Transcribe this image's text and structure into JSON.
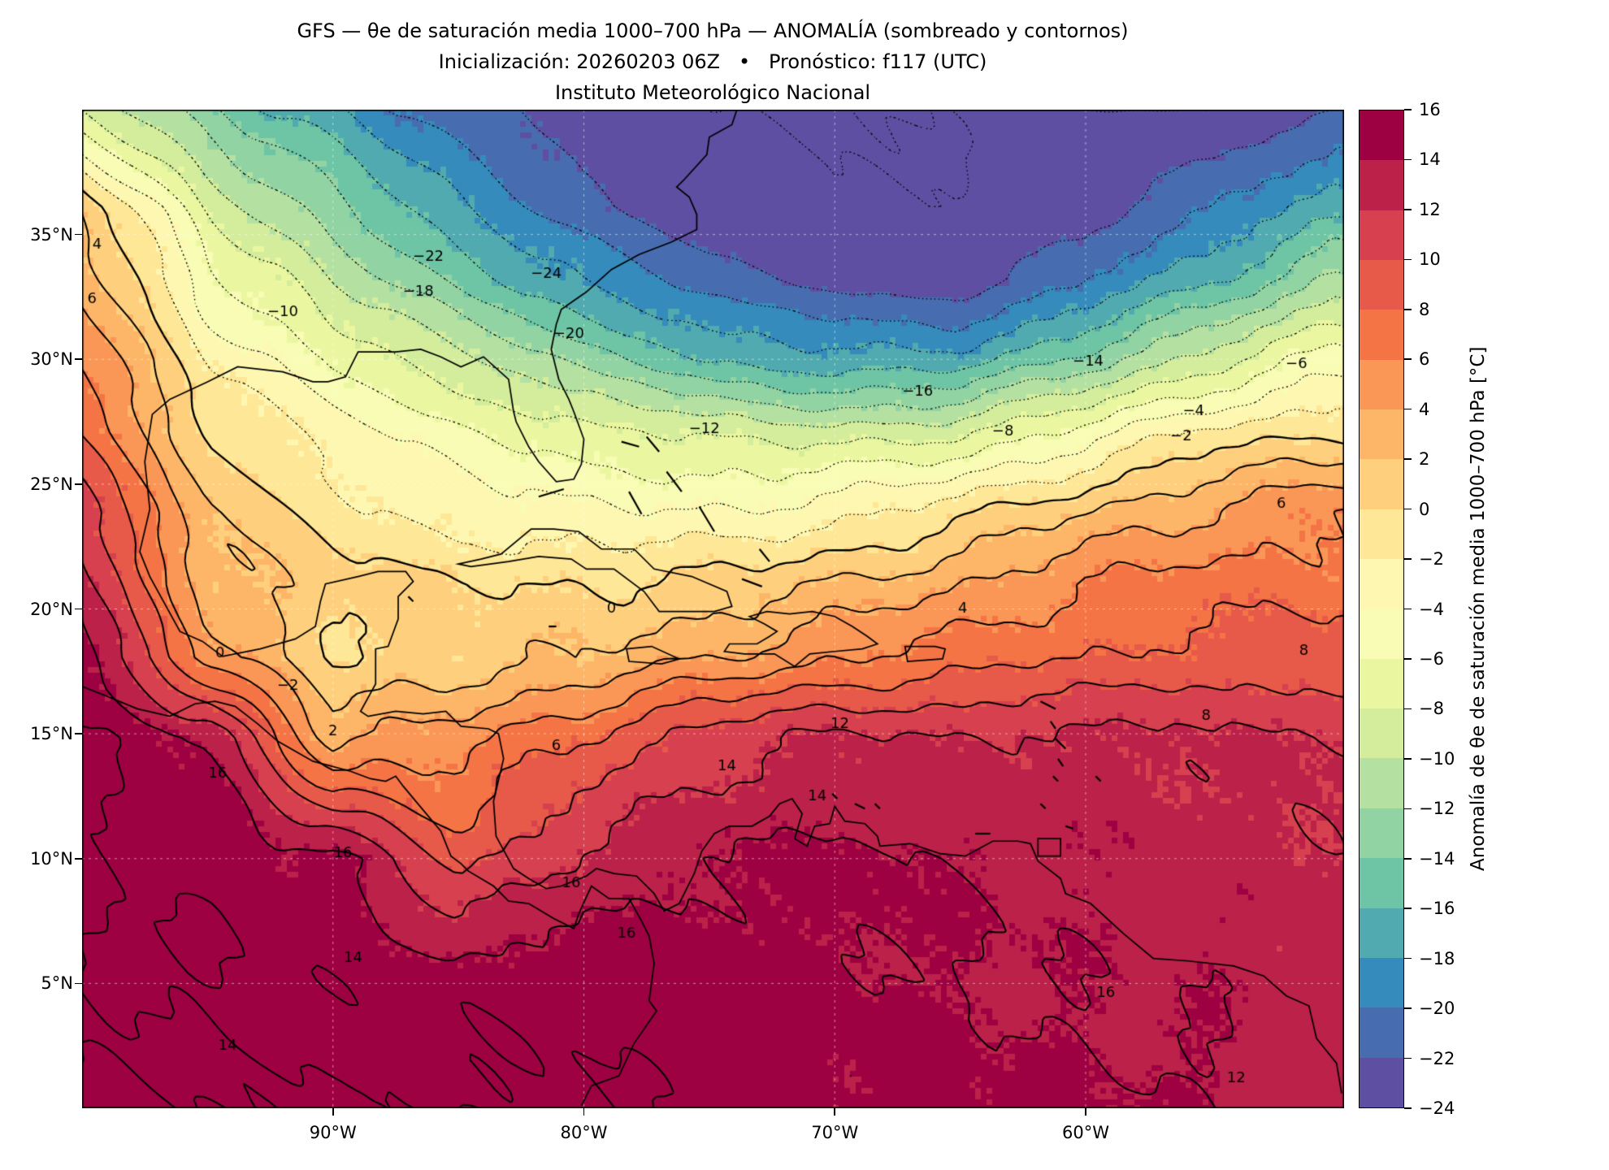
{
  "title": {
    "line1": "GFS — θe de saturación media 1000–700 hPa — ANOMALÍA (sombreado y contornos)",
    "line2": "Inicialización: 20260203 06Z   •   Pronóstico: f117 (UTC)",
    "line3": "Instituto Meteorológico Nacional"
  },
  "axes": {
    "lon_range": [
      -100,
      -49.7
    ],
    "lat_range": [
      0,
      40
    ],
    "x_ticks": [
      {
        "lon": -90,
        "label": "90°W"
      },
      {
        "lon": -80,
        "label": "80°W"
      },
      {
        "lon": -70,
        "label": "70°W"
      },
      {
        "lon": -60,
        "label": "60°W"
      }
    ],
    "y_ticks": [
      {
        "lat": 35,
        "label": "35°N"
      },
      {
        "lat": 30,
        "label": "30°N"
      },
      {
        "lat": 25,
        "label": "25°N"
      },
      {
        "lat": 20,
        "label": "20°N"
      },
      {
        "lat": 15,
        "label": "15°N"
      },
      {
        "lat": 10,
        "label": "10°N"
      },
      {
        "lat": 5,
        "label": "5°N"
      }
    ],
    "gridline_lons": [
      -90,
      -80,
      -70,
      -60
    ],
    "gridline_lats": [
      5,
      10,
      15,
      20,
      25,
      30,
      35
    ]
  },
  "colorbar": {
    "label": "Anomalía de θe de saturación media 1000–700 hPa [°C]",
    "vmin": -24,
    "vmax": 16,
    "tick_values": [
      16,
      14,
      12,
      10,
      8,
      6,
      4,
      2,
      0,
      -2,
      -4,
      -6,
      -8,
      -10,
      -12,
      -14,
      -16,
      -18,
      -20,
      -22,
      -24
    ],
    "tick_labels": [
      "16",
      "14",
      "12",
      "10",
      "8",
      "6",
      "4",
      "2",
      "0",
      "−2",
      "−4",
      "−6",
      "−8",
      "−10",
      "−12",
      "−14",
      "−16",
      "−18",
      "−20",
      "−22",
      "−24"
    ],
    "colors": [
      "#5e4fa2",
      "#476db0",
      "#358bbc",
      "#50aaaf",
      "#6dc5a5",
      "#92d3a4",
      "#b4e1a2",
      "#d3ed9c",
      "#ebf7a0",
      "#f8fcb5",
      "#fef7b1",
      "#fee796",
      "#fed07e",
      "#fdb668",
      "#fa9656",
      "#f57446",
      "#e75948",
      "#d7404e",
      "#bb2149",
      "#9e0142"
    ]
  },
  "chart_data": {
    "type": "heatmap",
    "title": "GFS — θe de saturación media 1000–700 hPa — ANOMALÍA (sombreado y contornos)",
    "units": "°C",
    "x": [
      -100,
      -95,
      -90,
      -85,
      -80,
      -75,
      -70,
      -65,
      -60,
      -55,
      -50
    ],
    "y": [
      0,
      5,
      10,
      15,
      18,
      21,
      24,
      27,
      30,
      33,
      36,
      40
    ],
    "values": [
      [
        16,
        16,
        16,
        16,
        16,
        15.5,
        15,
        15,
        14.5,
        14,
        12.5
      ],
      [
        16,
        16,
        15.5,
        15.5,
        15.5,
        15,
        14.5,
        14,
        13.5,
        13.5,
        13
      ],
      [
        16,
        15.5,
        14.5,
        9,
        12.5,
        14,
        14.5,
        14,
        13.5,
        13,
        12.5
      ],
      [
        16,
        14,
        3,
        5,
        8,
        11,
        12,
        12,
        12.5,
        12,
        12
      ],
      [
        15,
        5,
        0,
        1,
        2,
        4,
        6,
        7,
        8,
        9,
        9
      ],
      [
        13,
        3,
        1,
        0,
        0,
        0.5,
        2,
        4,
        6,
        7,
        7
      ],
      [
        11,
        2,
        -1,
        -3,
        -4,
        -4,
        -3,
        -1,
        2,
        4,
        6
      ],
      [
        8,
        0,
        -3,
        -5.5,
        -7,
        -8.5,
        -9,
        -8,
        -5,
        -1,
        0
      ],
      [
        6,
        -2,
        -6,
        -9.5,
        -13,
        -16,
        -17.5,
        -17.5,
        -13,
        -9,
        -5
      ],
      [
        4,
        -5,
        -10,
        -14,
        -18,
        -21,
        -22.5,
        -23,
        -20,
        -16,
        -11
      ],
      [
        2,
        -8,
        -13,
        -18,
        -21.5,
        -23.5,
        -24,
        -24,
        -23,
        -20,
        -17
      ],
      [
        -8,
        -14,
        -18,
        -21,
        -23,
        -24,
        -24,
        -24,
        -24,
        -24,
        -22
      ]
    ],
    "contour_levels": [
      -24,
      -22,
      -20,
      -18,
      -16,
      -14,
      -12,
      -10,
      -8,
      -6,
      -4,
      -2,
      0,
      2,
      4,
      6,
      8,
      10,
      12,
      14,
      16
    ]
  },
  "contour_labels": [
    {
      "text": "4",
      "lon": -99.4,
      "lat": 34.6
    },
    {
      "text": "6",
      "lon": -99.6,
      "lat": 32.4
    },
    {
      "text": "−10",
      "lon": -92.0,
      "lat": 31.9
    },
    {
      "text": "−22",
      "lon": -86.2,
      "lat": 34.1
    },
    {
      "text": "−18",
      "lon": -86.6,
      "lat": 32.7
    },
    {
      "text": "−24",
      "lon": -81.5,
      "lat": 33.4
    },
    {
      "text": "−20",
      "lon": -80.6,
      "lat": 31.0
    },
    {
      "text": "−12",
      "lon": -75.2,
      "lat": 27.2
    },
    {
      "text": "−16",
      "lon": -66.7,
      "lat": 28.7
    },
    {
      "text": "−14",
      "lon": -59.9,
      "lat": 29.9
    },
    {
      "text": "−8",
      "lon": -63.3,
      "lat": 27.1
    },
    {
      "text": "−6",
      "lon": -51.6,
      "lat": 29.8
    },
    {
      "text": "−4",
      "lon": -55.7,
      "lat": 27.9
    },
    {
      "text": "−2",
      "lon": -56.2,
      "lat": 26.9
    },
    {
      "text": "0",
      "lon": -78.9,
      "lat": 20.0
    },
    {
      "text": "0",
      "lon": -94.5,
      "lat": 18.2
    },
    {
      "text": "−2",
      "lon": -91.8,
      "lat": 16.9
    },
    {
      "text": "2",
      "lon": -90.0,
      "lat": 15.1
    },
    {
      "text": "4",
      "lon": -64.9,
      "lat": 20.0
    },
    {
      "text": "6",
      "lon": -81.1,
      "lat": 14.5
    },
    {
      "text": "6",
      "lon": -52.2,
      "lat": 24.2
    },
    {
      "text": "8",
      "lon": -51.3,
      "lat": 18.3
    },
    {
      "text": "8",
      "lon": -55.2,
      "lat": 15.7
    },
    {
      "text": "12",
      "lon": -69.8,
      "lat": 15.4
    },
    {
      "text": "14",
      "lon": -74.3,
      "lat": 13.7
    },
    {
      "text": "14",
      "lon": -70.7,
      "lat": 12.5
    },
    {
      "text": "16",
      "lon": -94.6,
      "lat": 13.4
    },
    {
      "text": "16",
      "lon": -89.6,
      "lat": 10.2
    },
    {
      "text": "16",
      "lon": -78.3,
      "lat": 7.0
    },
    {
      "text": "16",
      "lon": -80.5,
      "lat": 9.0
    },
    {
      "text": "16",
      "lon": -59.2,
      "lat": 4.6
    },
    {
      "text": "14",
      "lon": -94.2,
      "lat": 2.5
    },
    {
      "text": "14",
      "lon": -89.2,
      "lat": 6.0
    },
    {
      "text": "12",
      "lon": -54.0,
      "lat": 1.2
    }
  ]
}
